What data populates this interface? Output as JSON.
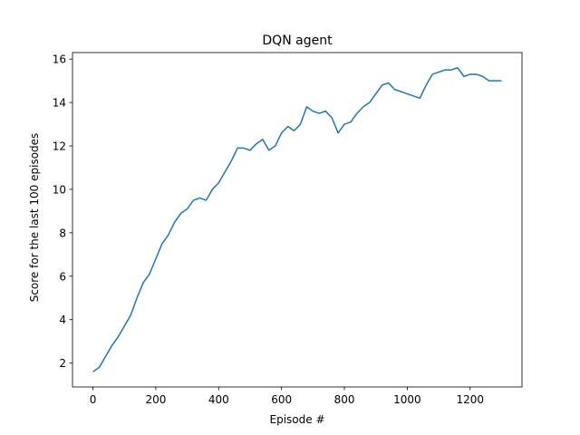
{
  "chart_data": {
    "type": "line",
    "title": "DQN agent",
    "xlabel": "Episode #",
    "ylabel": "Score for the last 100 episodes",
    "xlim": [
      -65,
      1365
    ],
    "ylim": [
      0.9,
      16.3
    ],
    "xticks": [
      0,
      200,
      400,
      600,
      800,
      1000,
      1200
    ],
    "yticks": [
      2,
      4,
      6,
      8,
      10,
      12,
      14,
      16
    ],
    "grid": false,
    "line_color": "#1f77b4",
    "series": [
      {
        "x": [
          0,
          20,
          40,
          60,
          80,
          100,
          120,
          140,
          160,
          180,
          200,
          220,
          240,
          260,
          280,
          300,
          320,
          340,
          360,
          380,
          400,
          420,
          440,
          460,
          480,
          500,
          520,
          540,
          560,
          580,
          600,
          620,
          640,
          660,
          680,
          700,
          720,
          740,
          760,
          780,
          800,
          820,
          840,
          860,
          880,
          900,
          920,
          940,
          960,
          980,
          1000,
          1020,
          1040,
          1060,
          1080,
          1100,
          1120,
          1140,
          1160,
          1180,
          1200,
          1220,
          1240,
          1260,
          1280,
          1300
        ],
        "y": [
          1.6,
          1.8,
          2.3,
          2.8,
          3.2,
          3.7,
          4.2,
          5.0,
          5.7,
          6.1,
          6.8,
          7.5,
          7.9,
          8.5,
          8.9,
          9.1,
          9.5,
          9.6,
          9.5,
          10.0,
          10.3,
          10.8,
          11.3,
          11.9,
          11.9,
          11.8,
          12.1,
          12.3,
          11.8,
          12.0,
          12.6,
          12.9,
          12.7,
          13.0,
          13.8,
          13.6,
          13.5,
          13.6,
          13.3,
          12.6,
          13.0,
          13.1,
          13.5,
          13.8,
          14.0,
          14.4,
          14.8,
          14.9,
          14.6,
          14.5,
          14.4,
          14.3,
          14.2,
          14.8,
          15.3,
          15.4,
          15.5,
          15.5,
          15.6,
          15.2,
          15.3,
          15.3,
          15.2,
          15.0,
          15.0,
          15.0
        ]
      }
    ]
  }
}
